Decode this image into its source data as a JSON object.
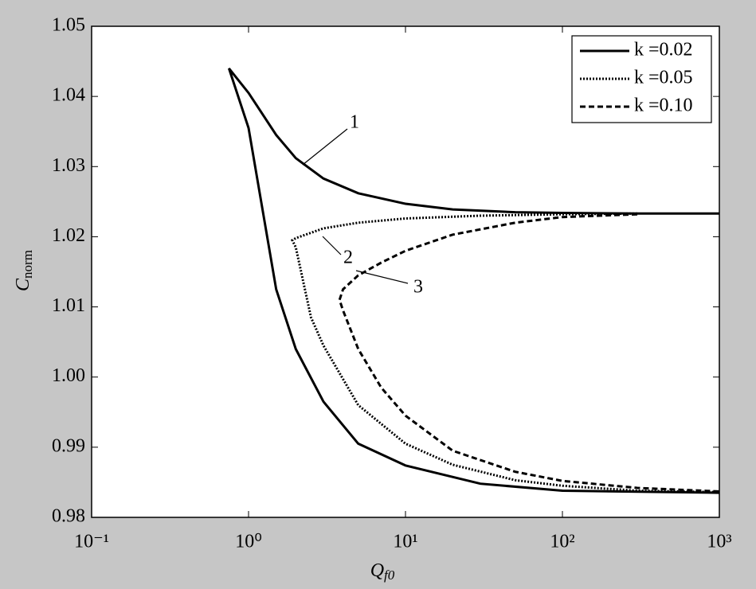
{
  "chart_data": {
    "type": "line",
    "xlabel": {
      "symbol": "Q",
      "subscript": "f0"
    },
    "ylabel": {
      "symbol": "C",
      "subscript": "norm"
    },
    "xscale": "log",
    "xlim": [
      0.1,
      1000
    ],
    "xticks": [
      {
        "value": 0.1,
        "label": "10⁻¹"
      },
      {
        "value": 1,
        "label": "10⁰"
      },
      {
        "value": 10,
        "label": "10¹"
      },
      {
        "value": 100,
        "label": "10²"
      },
      {
        "value": 1000,
        "label": "10³"
      }
    ],
    "ylim": [
      0.98,
      1.05
    ],
    "yticks": [
      0.98,
      0.99,
      {
        "value": 1,
        "label": "1.00"
      },
      1.01,
      1.02,
      1.03,
      1.04,
      1.05
    ],
    "legend": "upper right",
    "annotations": [
      "1",
      "2",
      "3"
    ],
    "series": [
      {
        "name": "k =0.02",
        "color": "#000000",
        "style": "solid",
        "x": [
          1000,
          300,
          100,
          50,
          20,
          10,
          5,
          3,
          2,
          1.5,
          1,
          0.75,
          1,
          1.5,
          2,
          3,
          5,
          10,
          30,
          100,
          1000
        ],
        "values": [
          1.0233,
          1.0233,
          1.0234,
          1.0235,
          1.0239,
          1.0247,
          1.0262,
          1.0283,
          1.0312,
          1.0345,
          1.0405,
          1.044,
          1.0355,
          1.0125,
          1.004,
          0.9965,
          0.9905,
          0.9874,
          0.9848,
          0.9838,
          0.9835
        ]
      },
      {
        "name": "k =0.05",
        "color": "#000000",
        "style": "dotted",
        "x": [
          300,
          100,
          30,
          10,
          5,
          3,
          2,
          1.9,
          2,
          2.5,
          3,
          5,
          10,
          20,
          50,
          100,
          300,
          1000
        ],
        "values": [
          1.0233,
          1.0232,
          1.023,
          1.0226,
          1.022,
          1.0212,
          1.0198,
          1.0195,
          1.0185,
          1.0085,
          1.0045,
          0.996,
          0.9905,
          0.9875,
          0.9853,
          0.9845,
          0.9838,
          0.9836
        ]
      },
      {
        "name": "k =0.10",
        "color": "#000000",
        "style": "dashed",
        "x": [
          300,
          100,
          50,
          20,
          10,
          7,
          5,
          4,
          3.8,
          4,
          5,
          7,
          10,
          20,
          50,
          100,
          300,
          1000
        ],
        "values": [
          1.0232,
          1.0228,
          1.022,
          1.0203,
          1.018,
          1.0163,
          1.0145,
          1.0125,
          1.011,
          1.0095,
          1.004,
          0.9985,
          0.9945,
          0.9895,
          0.9865,
          0.9852,
          0.9842,
          0.9837
        ]
      }
    ]
  }
}
